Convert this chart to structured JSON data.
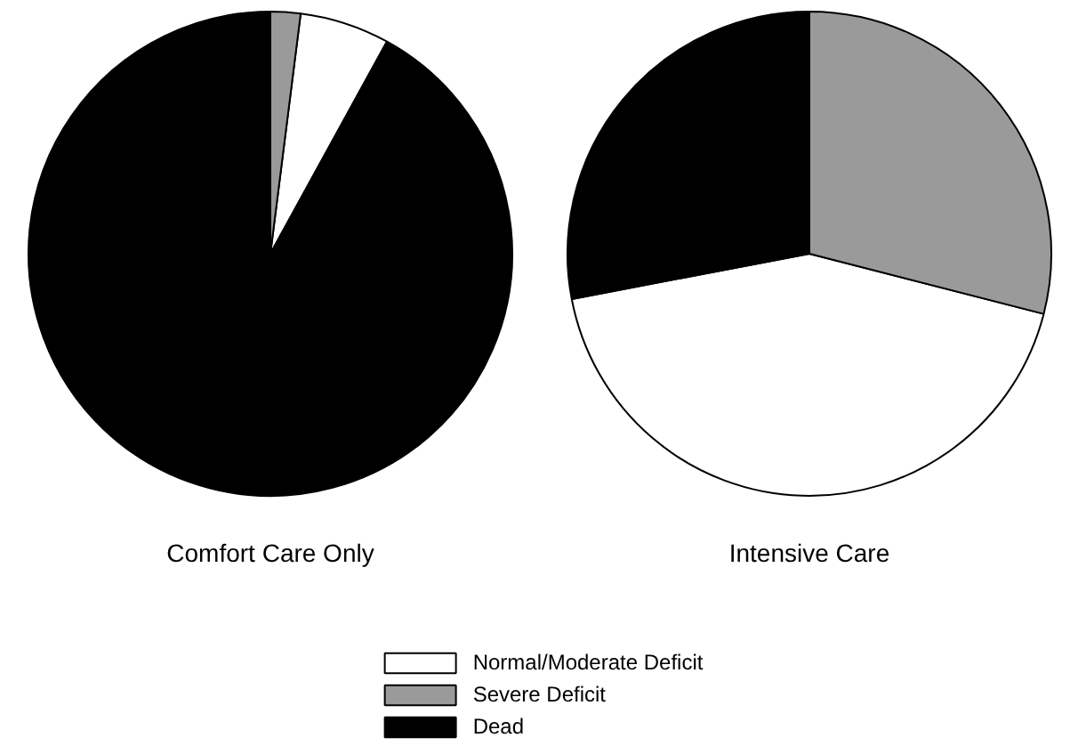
{
  "chart_data": [
    {
      "type": "pie",
      "title": "Comfort Care Only",
      "categories": [
        "Normal/Moderate Deficit",
        "Severe Deficit",
        "Dead"
      ],
      "values": [
        6,
        2,
        92
      ],
      "colors": [
        "#ffffff",
        "#9a9a9a",
        "#000000"
      ],
      "legend": "bottom"
    },
    {
      "type": "pie",
      "title": "Intensive Care",
      "categories": [
        null,
        null,
        null
      ],
      "values": [
        43,
        29,
        28
      ],
      "colors": [
        "#ffffff",
        "#9a9a9a",
        "#000000"
      ]
    }
  ]
}
